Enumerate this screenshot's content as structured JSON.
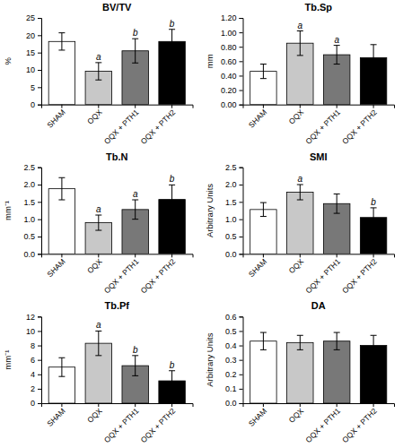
{
  "chart_data": [
    {
      "type": "bar",
      "title": "BV/TV",
      "ylabel": "%",
      "categories": [
        "SHAM",
        "OQX",
        "OQX + PTH1",
        "OQX + PTH2"
      ],
      "values": [
        18.2,
        9.6,
        15.5,
        18.2
      ],
      "errors": [
        2.5,
        2.5,
        3.5,
        3.5
      ],
      "colors": [
        "#ffffff",
        "#c8c8c8",
        "#787878",
        "#000000"
      ],
      "annotations": [
        {
          "category": "OQX",
          "text": "a"
        },
        {
          "category": "OQX + PTH1",
          "text": "b"
        },
        {
          "category": "OQX + PTH2",
          "text": "b"
        }
      ],
      "ylim": [
        0,
        25
      ],
      "yticks": [
        0,
        5,
        10,
        15,
        20,
        25
      ]
    },
    {
      "type": "bar",
      "title": "Tb.Sp",
      "ylabel": "mm",
      "categories": [
        "SHAM",
        "OQX",
        "OQX + PTH1",
        "OQX + PTH2"
      ],
      "values": [
        0.46,
        0.85,
        0.69,
        0.65
      ],
      "errors": [
        0.1,
        0.17,
        0.13,
        0.18
      ],
      "colors": [
        "#ffffff",
        "#c8c8c8",
        "#787878",
        "#000000"
      ],
      "annotations": [
        {
          "category": "OQX",
          "text": "a"
        },
        {
          "category": "OQX + PTH1",
          "text": "a"
        }
      ],
      "ylim": [
        0,
        1.2
      ],
      "yticks": [
        {
          "value": 0,
          "label": "0.00"
        },
        {
          "value": 0.2,
          "label": "0.20"
        },
        {
          "value": 0.4,
          "label": "0.40"
        },
        {
          "value": 0.6,
          "label": "0.60"
        },
        {
          "value": 0.8,
          "label": "0.80"
        },
        {
          "value": 1,
          "label": "1.00"
        },
        {
          "value": 1.2,
          "label": "1.20"
        }
      ]
    },
    {
      "type": "bar",
      "title": "Tb.N",
      "ylabel": "mm⁻¹",
      "categories": [
        "SHAM",
        "OQX",
        "OQX + PTH1",
        "OQX + PTH2"
      ],
      "values": [
        1.88,
        0.9,
        1.28,
        1.57
      ],
      "errors": [
        0.32,
        0.22,
        0.28,
        0.42
      ],
      "colors": [
        "#ffffff",
        "#c8c8c8",
        "#787878",
        "#000000"
      ],
      "annotations": [
        {
          "category": "OQX",
          "text": "a"
        },
        {
          "category": "OQX + PTH1",
          "text": "a"
        },
        {
          "category": "OQX + PTH2",
          "text": "b"
        }
      ],
      "ylim": [
        0,
        2.5
      ],
      "yticks": [
        {
          "value": 0,
          "label": "0.0"
        },
        0.5,
        {
          "value": 1,
          "label": "1.0"
        },
        1.5,
        {
          "value": 2,
          "label": "2.0"
        },
        2.5
      ]
    },
    {
      "type": "bar",
      "title": "SMI",
      "ylabel": "Arbitrary Units",
      "categories": [
        "SHAM",
        "OQX",
        "OQX + PTH1",
        "OQX + PTH2"
      ],
      "values": [
        1.28,
        1.78,
        1.45,
        1.05
      ],
      "errors": [
        0.2,
        0.22,
        0.28,
        0.28
      ],
      "colors": [
        "#ffffff",
        "#c8c8c8",
        "#787878",
        "#000000"
      ],
      "annotations": [
        {
          "category": "OQX",
          "text": "a"
        },
        {
          "category": "OQX + PTH2",
          "text": "b"
        }
      ],
      "ylim": [
        0,
        2.5
      ],
      "yticks": [
        {
          "value": 0,
          "label": "0.0"
        },
        0.5,
        {
          "value": 1,
          "label": "1.0"
        },
        1.5,
        {
          "value": 2,
          "label": "2.0"
        },
        2.5
      ]
    },
    {
      "type": "bar",
      "title": "Tb.Pf",
      "ylabel": "mm⁻¹",
      "categories": [
        "SHAM",
        "OQX",
        "OQX + PTH1",
        "OQX + PTH2"
      ],
      "values": [
        5.0,
        8.3,
        5.2,
        3.1
      ],
      "errors": [
        1.3,
        1.7,
        1.4,
        1.4
      ],
      "colors": [
        "#ffffff",
        "#c8c8c8",
        "#787878",
        "#000000"
      ],
      "annotations": [
        {
          "category": "OQX",
          "text": "a"
        },
        {
          "category": "OQX + PTH1",
          "text": "b"
        },
        {
          "category": "OQX + PTH2",
          "text": "b"
        }
      ],
      "ylim": [
        0,
        12
      ],
      "yticks": [
        0,
        2,
        4,
        6,
        8,
        10,
        12
      ]
    },
    {
      "type": "bar",
      "title": "DA",
      "ylabel": "Arbitrary Units",
      "categories": [
        "SHAM",
        "OQX",
        "OQX + PTH1",
        "OQX + PTH2"
      ],
      "values": [
        0.43,
        0.42,
        0.43,
        0.4
      ],
      "errors": [
        0.06,
        0.05,
        0.06,
        0.07
      ],
      "colors": [
        "#ffffff",
        "#c8c8c8",
        "#787878",
        "#000000"
      ],
      "ylim": [
        0,
        0.6
      ],
      "yticks": [
        {
          "value": 0,
          "label": "0.0"
        },
        0.1,
        0.2,
        0.3,
        0.4,
        0.5,
        0.6
      ]
    }
  ]
}
